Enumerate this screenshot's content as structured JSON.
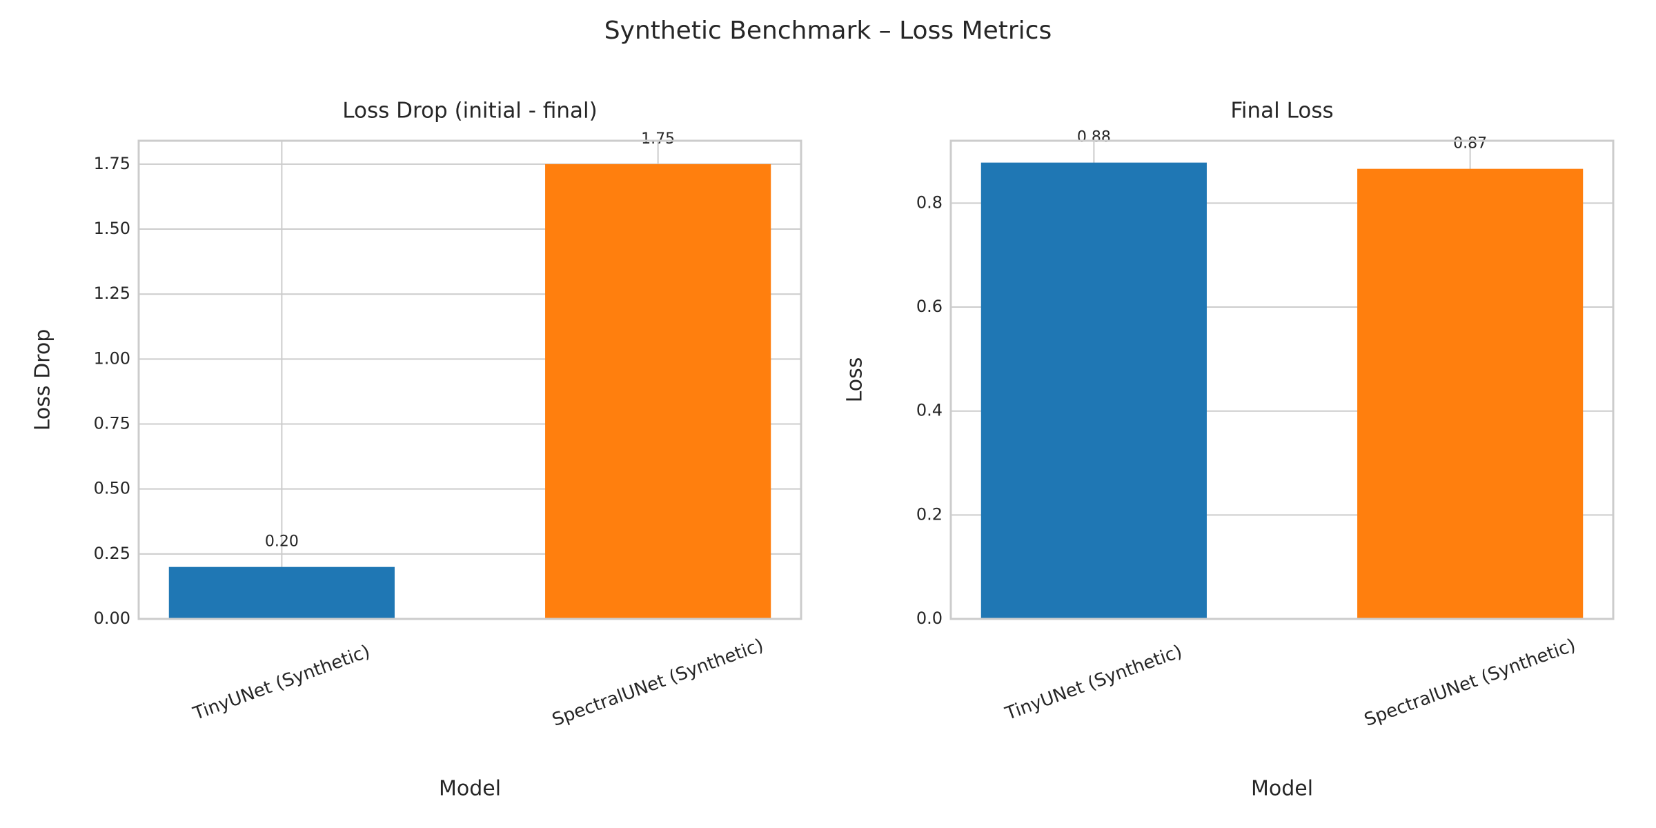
{
  "title": "Synthetic Benchmark – Loss Metrics",
  "chart_data": [
    {
      "type": "bar",
      "title": "Loss Drop (initial - final)",
      "x_label": "Model",
      "y_label": "Loss Drop",
      "categories": [
        "TinyUNet (Synthetic)",
        "SpectralUNet (Synthetic)"
      ],
      "values": [
        0.2,
        1.75
      ],
      "value_labels": [
        "0.20",
        "1.75"
      ],
      "colors": [
        "#1f77b4",
        "#ff7f0e"
      ],
      "ylim": [
        0,
        1.84
      ],
      "yticks": [
        {
          "value": 0,
          "label": "0.00"
        },
        0.25,
        {
          "value": 0.5,
          "label": "0.50"
        },
        0.75,
        {
          "value": 1,
          "label": "1.00"
        },
        1.25,
        {
          "value": 1.5,
          "label": "1.50"
        },
        1.75
      ],
      "grid": true
    },
    {
      "type": "bar",
      "title": "Final Loss",
      "x_label": "Model",
      "y_label": "Loss",
      "categories": [
        "TinyUNet (Synthetic)",
        "SpectralUNet (Synthetic)"
      ],
      "values": [
        0.878,
        0.866
      ],
      "value_labels": [
        "0.88",
        "0.87"
      ],
      "colors": [
        "#1f77b4",
        "#ff7f0e"
      ],
      "ylim": [
        0,
        0.92
      ],
      "yticks": [
        {
          "value": 0,
          "label": "0.0"
        },
        0.2,
        0.4,
        0.6,
        0.8
      ],
      "grid": true
    }
  ]
}
